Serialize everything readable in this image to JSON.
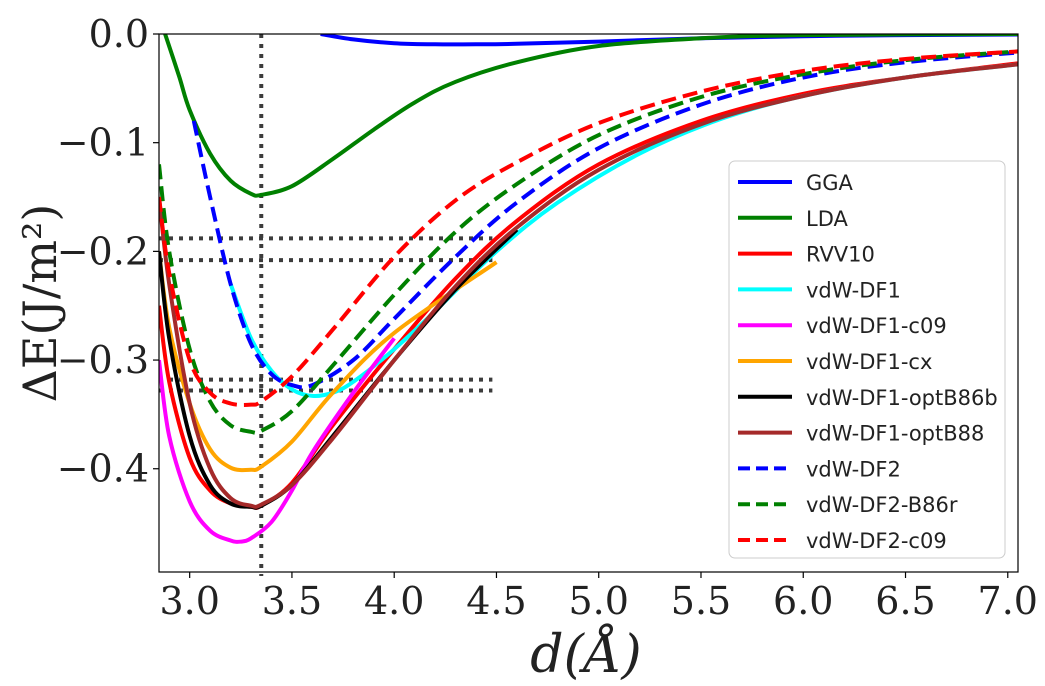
{
  "chart_data": {
    "type": "line",
    "xlabel": "d(Å)",
    "ylabel": "ΔE(J/m²)",
    "xlim": [
      2.85,
      7.05
    ],
    "ylim": [
      -0.495,
      0.0
    ],
    "xticks": [
      3.0,
      3.5,
      4.0,
      4.5,
      5.0,
      5.5,
      6.0,
      6.5,
      7.0
    ],
    "xtick_labels": [
      "3.0",
      "3.5",
      "4.0",
      "4.5",
      "5.0",
      "5.5",
      "6.0",
      "6.5",
      "7.0"
    ],
    "yticks": [
      0.0,
      -0.1,
      -0.2,
      -0.3,
      -0.4
    ],
    "ytick_labels": [
      "0.0",
      "−0.1",
      "−0.2",
      "−0.3",
      "−0.4"
    ],
    "legend_position": "center-right",
    "reference_lines": {
      "vertical_x": 3.35,
      "horizontal": [
        {
          "y": -0.188,
          "x_end": 4.48
        },
        {
          "y": -0.208,
          "x_end": 4.48
        },
        {
          "y": -0.318,
          "x_end": 4.48
        },
        {
          "y": -0.328,
          "x_end": 4.48
        }
      ],
      "color": "#3c3c3c"
    },
    "series": [
      {
        "name": "GGA",
        "color": "#0000ff",
        "dash": false,
        "x": [
          3.64,
          3.8,
          4.0,
          4.2,
          4.4,
          4.6,
          5.0,
          5.5,
          6.0,
          6.5,
          7.05
        ],
        "y": [
          0.0,
          -0.005,
          -0.0085,
          -0.0095,
          -0.0095,
          -0.009,
          -0.007,
          -0.004,
          -0.002,
          -0.001,
          -0.0005
        ]
      },
      {
        "name": "LDA",
        "color": "#008000",
        "dash": false,
        "x": [
          2.88,
          2.95,
          3.0,
          3.1,
          3.2,
          3.3,
          3.35,
          3.5,
          3.7,
          3.9,
          4.1,
          4.3,
          4.6,
          5.0,
          5.5,
          6.0,
          7.05
        ],
        "y": [
          0.0,
          -0.04,
          -0.07,
          -0.11,
          -0.135,
          -0.147,
          -0.148,
          -0.14,
          -0.115,
          -0.088,
          -0.063,
          -0.044,
          -0.026,
          -0.011,
          -0.004,
          -0.001,
          0.0
        ]
      },
      {
        "name": "RVV10",
        "color": "#ff0000",
        "dash": false,
        "x": [
          2.85,
          2.9,
          3.0,
          3.1,
          3.2,
          3.3,
          3.35,
          3.5,
          3.7,
          4.0,
          4.3,
          4.6,
          5.0,
          5.5,
          6.0,
          6.5,
          7.05
        ],
        "y": [
          -0.25,
          -0.32,
          -0.39,
          -0.42,
          -0.432,
          -0.435,
          -0.434,
          -0.413,
          -0.36,
          -0.29,
          -0.225,
          -0.172,
          -0.12,
          -0.08,
          -0.055,
          -0.04,
          -0.027
        ]
      },
      {
        "name": "vdW-DF1",
        "color": "#00ffff",
        "dash": false,
        "x": [
          3.2,
          3.3,
          3.4,
          3.5,
          3.6,
          3.7,
          3.8,
          4.0,
          4.2,
          4.5,
          4.8,
          5.2,
          5.6,
          6.0,
          6.5,
          7.05
        ],
        "y": [
          -0.23,
          -0.28,
          -0.31,
          -0.327,
          -0.333,
          -0.33,
          -0.32,
          -0.29,
          -0.255,
          -0.2,
          -0.155,
          -0.11,
          -0.078,
          -0.057,
          -0.04,
          -0.028
        ]
      },
      {
        "name": "vdW-DF1-c09",
        "color": "#ff00ff",
        "dash": false,
        "x": [
          2.85,
          2.9,
          3.0,
          3.1,
          3.2,
          3.25,
          3.3,
          3.4,
          3.5,
          3.6,
          3.8,
          4.0
        ],
        "y": [
          -0.3,
          -0.37,
          -0.43,
          -0.457,
          -0.466,
          -0.467,
          -0.464,
          -0.449,
          -0.42,
          -0.385,
          -0.33,
          -0.28
        ]
      },
      {
        "name": "vdW-DF1-cx",
        "color": "#ffa500",
        "dash": false,
        "x": [
          2.85,
          2.9,
          3.0,
          3.1,
          3.2,
          3.3,
          3.35,
          3.5,
          3.7,
          4.0,
          4.5
        ],
        "y": [
          -0.2,
          -0.27,
          -0.34,
          -0.382,
          -0.399,
          -0.401,
          -0.398,
          -0.375,
          -0.33,
          -0.275,
          -0.21
        ]
      },
      {
        "name": "vdW-DF1-optB86b",
        "color": "#000000",
        "dash": false,
        "x": [
          2.85,
          2.9,
          3.0,
          3.1,
          3.2,
          3.3,
          3.35,
          3.5,
          3.7,
          4.0,
          4.3,
          4.6
        ],
        "y": [
          -0.2,
          -0.28,
          -0.37,
          -0.415,
          -0.432,
          -0.435,
          -0.434,
          -0.415,
          -0.37,
          -0.3,
          -0.235,
          -0.18
        ]
      },
      {
        "name": "vdW-DF1-optB88",
        "color": "#a52a2a",
        "dash": false,
        "x": [
          2.85,
          2.9,
          3.0,
          3.1,
          3.2,
          3.3,
          3.35,
          3.5,
          3.7,
          4.0,
          4.3,
          4.6,
          5.0,
          5.5,
          6.0,
          6.5,
          7.05
        ],
        "y": [
          -0.15,
          -0.23,
          -0.34,
          -0.4,
          -0.427,
          -0.434,
          -0.433,
          -0.415,
          -0.372,
          -0.3,
          -0.232,
          -0.178,
          -0.125,
          -0.083,
          -0.057,
          -0.04,
          -0.028
        ]
      },
      {
        "name": "vdW-DF2",
        "color": "#0000ff",
        "dash": true,
        "x": [
          3.02,
          3.1,
          3.2,
          3.3,
          3.4,
          3.5,
          3.6,
          3.8,
          4.0,
          4.3,
          4.6,
          5.0,
          5.5,
          6.0,
          6.5,
          7.05
        ],
        "y": [
          -0.08,
          -0.15,
          -0.23,
          -0.285,
          -0.313,
          -0.323,
          -0.323,
          -0.3,
          -0.262,
          -0.205,
          -0.155,
          -0.105,
          -0.065,
          -0.04,
          -0.026,
          -0.017
        ]
      },
      {
        "name": "vdW-DF2-B86r",
        "color": "#008000",
        "dash": true,
        "x": [
          2.85,
          2.9,
          3.0,
          3.1,
          3.2,
          3.3,
          3.35,
          3.5,
          3.7,
          4.0,
          4.3,
          4.6,
          5.0,
          5.5,
          6.0,
          6.5,
          7.05
        ],
        "y": [
          -0.12,
          -0.2,
          -0.29,
          -0.338,
          -0.36,
          -0.366,
          -0.365,
          -0.347,
          -0.305,
          -0.24,
          -0.182,
          -0.138,
          -0.093,
          -0.058,
          -0.037,
          -0.024,
          -0.016
        ]
      },
      {
        "name": "vdW-DF2-c09",
        "color": "#ff0000",
        "dash": true,
        "x": [
          2.85,
          2.9,
          3.0,
          3.1,
          3.2,
          3.3,
          3.35,
          3.5,
          3.7,
          4.0,
          4.3,
          4.6,
          5.0,
          5.5,
          6.0,
          6.5,
          7.05
        ],
        "y": [
          -0.15,
          -0.22,
          -0.3,
          -0.33,
          -0.34,
          -0.341,
          -0.338,
          -0.315,
          -0.272,
          -0.205,
          -0.153,
          -0.118,
          -0.082,
          -0.053,
          -0.034,
          -0.023,
          -0.016
        ]
      }
    ]
  }
}
